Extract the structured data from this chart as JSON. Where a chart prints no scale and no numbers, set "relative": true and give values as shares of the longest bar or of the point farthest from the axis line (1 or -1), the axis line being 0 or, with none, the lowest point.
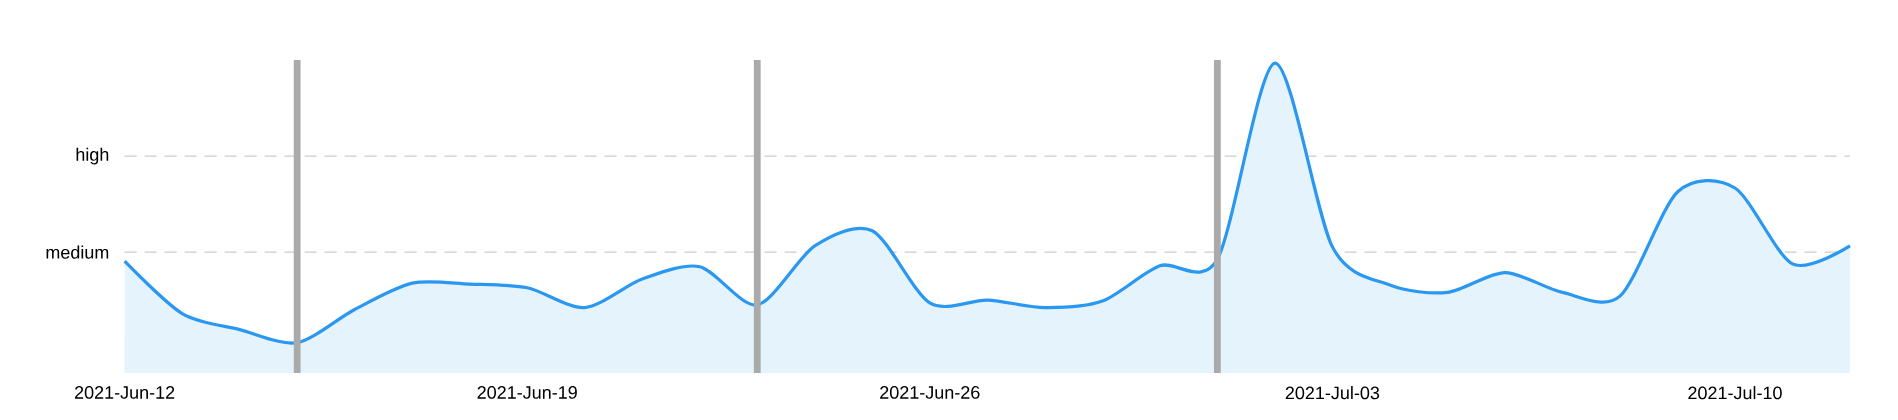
{
  "chart_data": {
    "type": "area",
    "relative": true,
    "x": [
      "2021-06-12",
      "2021-06-13",
      "2021-06-14",
      "2021-06-15",
      "2021-06-16",
      "2021-06-17",
      "2021-06-18",
      "2021-06-19",
      "2021-06-20",
      "2021-06-21",
      "2021-06-22",
      "2021-06-23",
      "2021-06-24",
      "2021-06-25",
      "2021-06-26",
      "2021-06-27",
      "2021-06-28",
      "2021-06-29",
      "2021-06-30",
      "2021-07-01",
      "2021-07-02",
      "2021-07-03",
      "2021-07-04",
      "2021-07-05",
      "2021-07-06",
      "2021-07-07",
      "2021-07-08",
      "2021-07-09",
      "2021-07-10",
      "2021-07-11",
      "2021-07-12"
    ],
    "series": [
      {
        "color": "#2a97f0",
        "values": [
          0.361,
          0.192,
          0.14,
          0.098,
          0.205,
          0.29,
          0.287,
          0.275,
          0.211,
          0.303,
          0.343,
          0.22,
          0.41,
          0.459,
          0.226,
          0.235,
          0.211,
          0.232,
          0.346,
          0.367,
          1,
          0.407,
          0.284,
          0.26,
          0.324,
          0.26,
          0.248,
          0.584,
          0.597,
          0.352,
          0.41
        ]
      }
    ],
    "xlim": [
      "2021-06-12",
      "2021-07-12"
    ],
    "xticks": [
      {
        "value": "2021-06-12",
        "label": "2021-Jun-12"
      },
      {
        "value": "2021-06-19",
        "label": "2021-Jun-19"
      },
      {
        "value": "2021-06-26",
        "label": "2021-Jun-26"
      },
      {
        "value": "2021-07-03",
        "label": "2021-Jul-03"
      },
      {
        "value": "2021-07-10",
        "label": "2021-Jul-10"
      }
    ],
    "ref_lines": [
      {
        "axis": "y",
        "value": 0.39,
        "label": "medium",
        "color": "#cccccc",
        "line_style": "dashed"
      },
      {
        "axis": "y",
        "value": 0.7,
        "label": "high",
        "color": "#cccccc",
        "line_style": "dashed"
      },
      {
        "axis": "x",
        "value": "2021-06-15",
        "color": "#aaaaaa"
      },
      {
        "axis": "x",
        "value": "2021-06-23",
        "color": "#aaaaaa"
      },
      {
        "axis": "x",
        "value": "2021-07-01",
        "color": "#aaaaaa"
      }
    ],
    "marker": "none"
  }
}
